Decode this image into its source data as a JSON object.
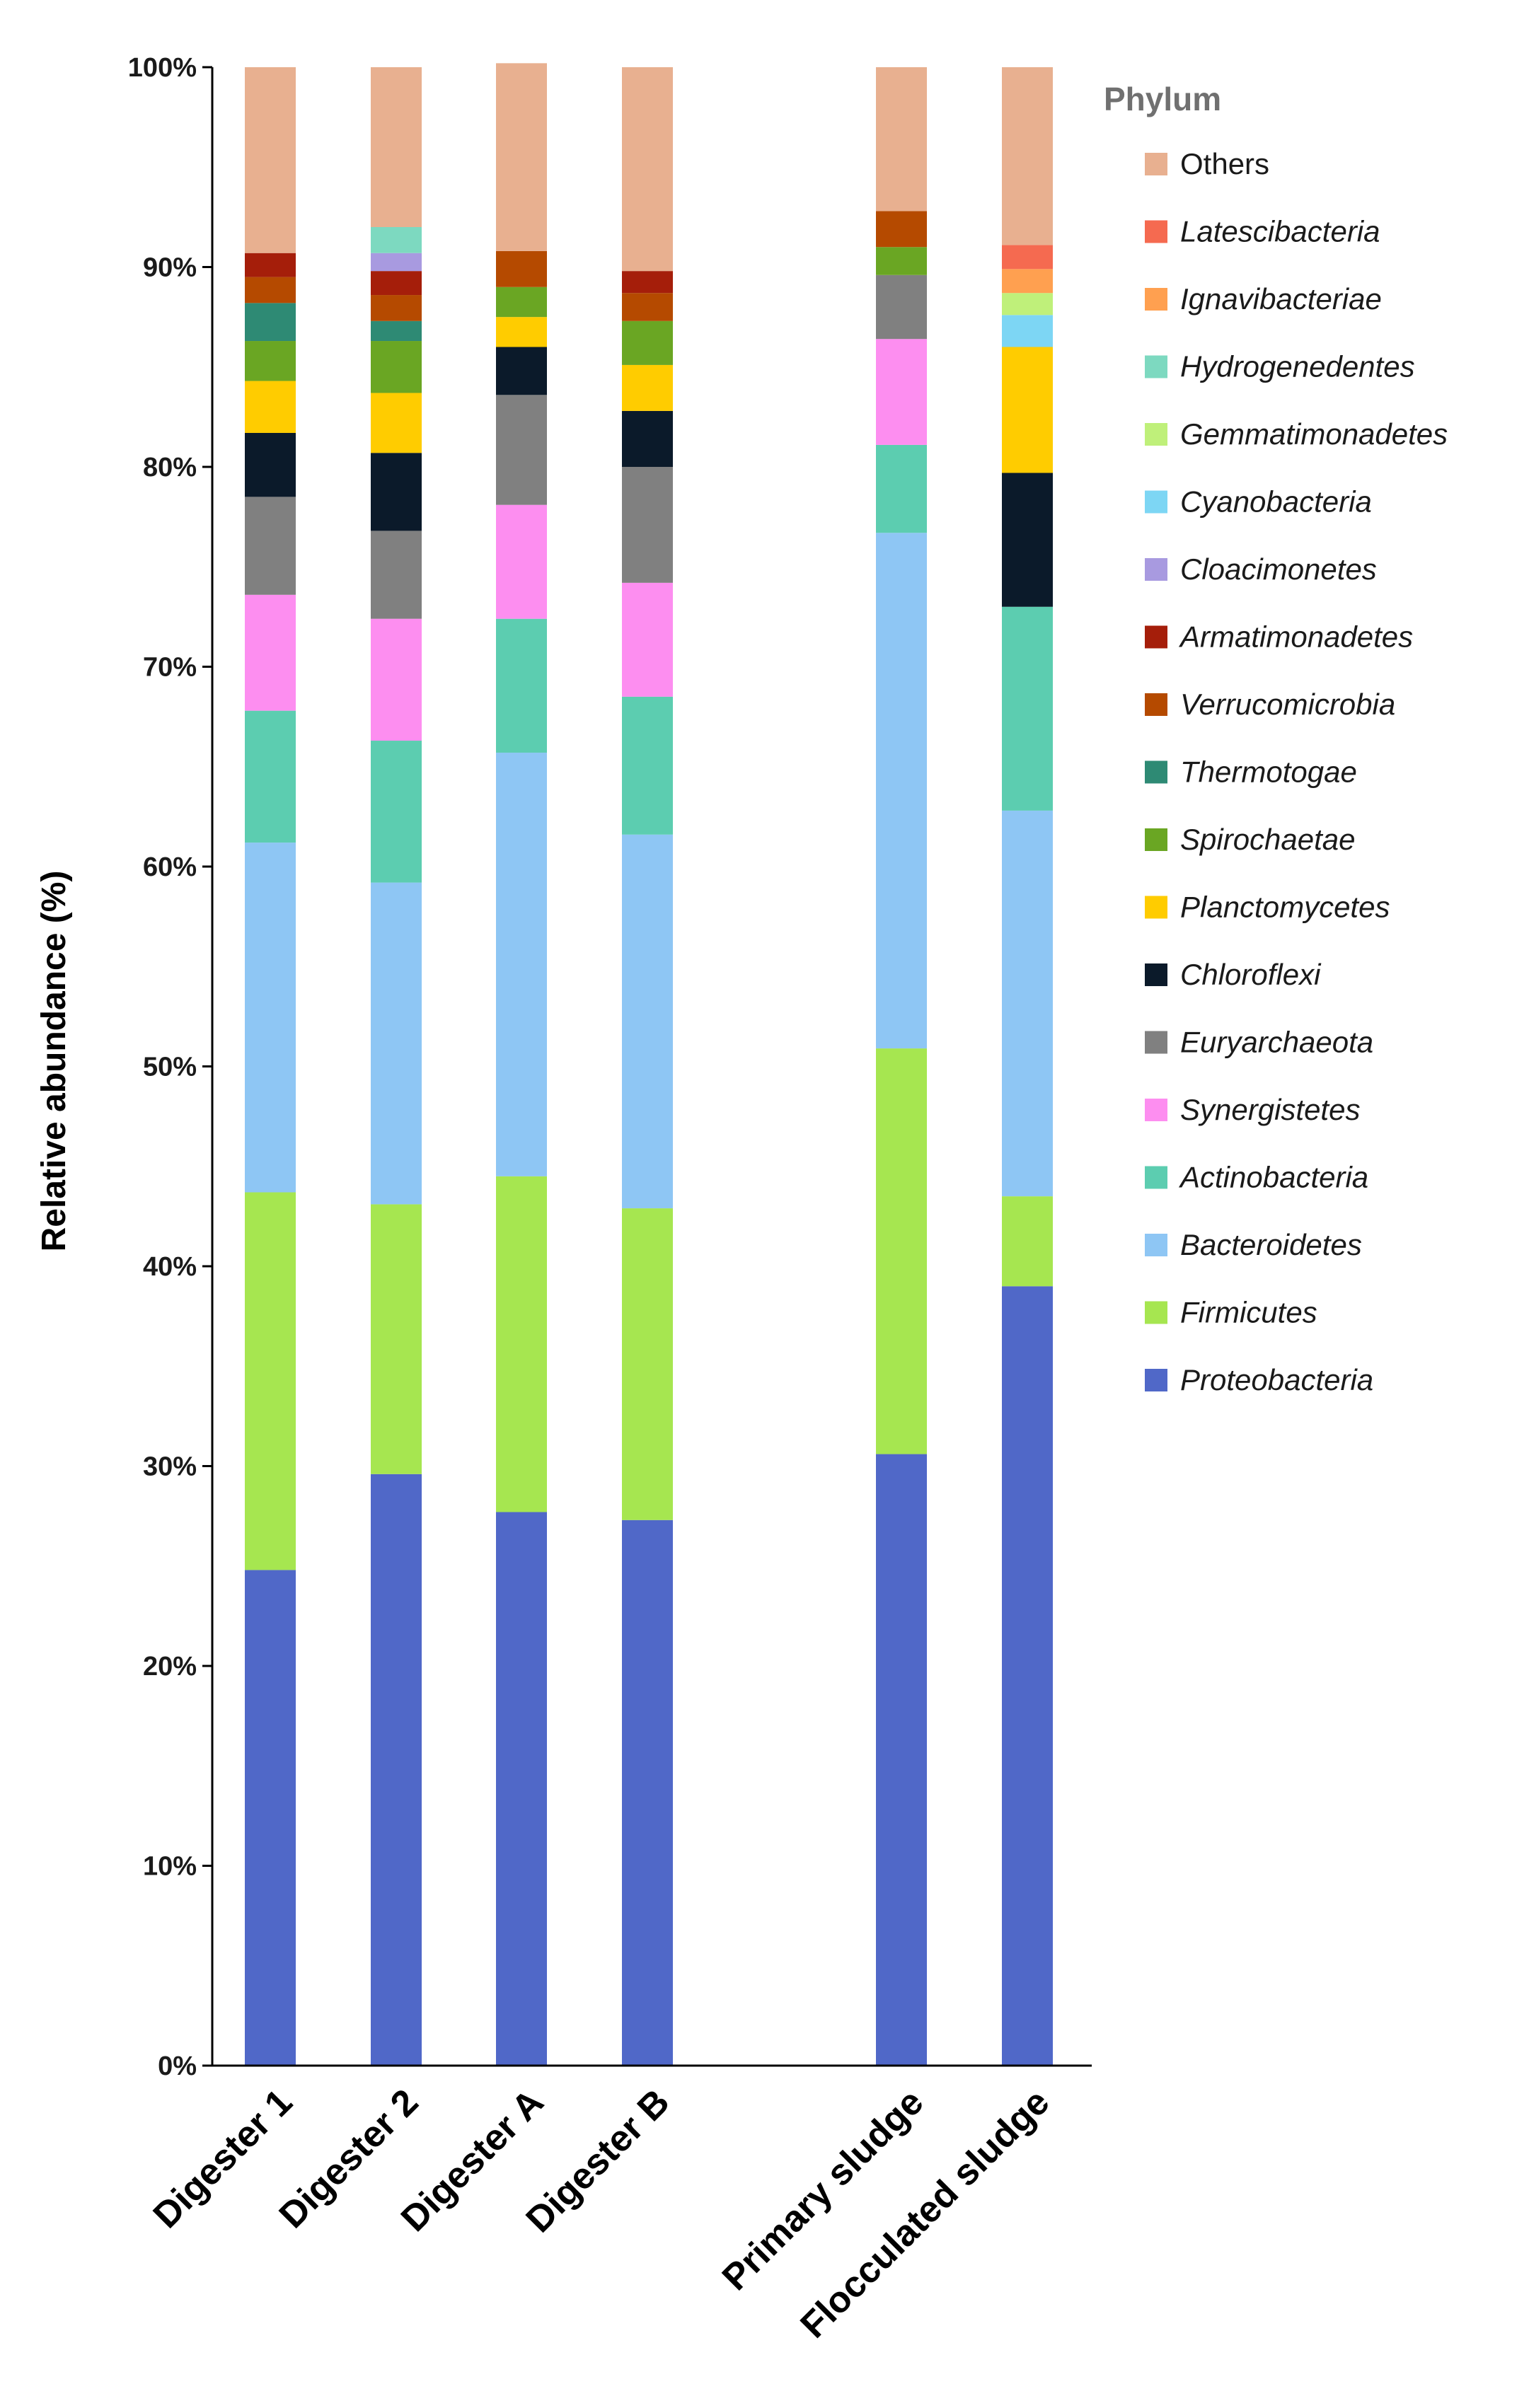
{
  "chart_data": {
    "type": "bar",
    "stacked": true,
    "title": "",
    "xlabel": "",
    "ylabel": "Relative abundance (%)",
    "ylim": [
      0,
      100
    ],
    "yticks": [
      "0%",
      "10%",
      "20%",
      "30%",
      "40%",
      "50%",
      "60%",
      "70%",
      "80%",
      "90%",
      "100%"
    ],
    "categories": [
      "Digester 1",
      "Digester 2",
      "Digester A",
      "Digester B",
      "Primary sludge",
      "Flocculated sludge"
    ],
    "legend_title": "Phylum",
    "legend_position": "right",
    "series": [
      {
        "name": "Proteobacteria",
        "color": "#5068c8",
        "italic": true,
        "values": [
          24.8,
          29.6,
          27.7,
          27.3,
          30.6,
          39.0
        ]
      },
      {
        "name": "Firmicutes",
        "color": "#a6e650",
        "italic": true,
        "values": [
          18.9,
          13.5,
          16.8,
          15.6,
          20.3,
          4.5
        ]
      },
      {
        "name": "Bacteroidetes",
        "color": "#8ec6f4",
        "italic": true,
        "values": [
          17.5,
          16.1,
          21.2,
          18.7,
          25.8,
          19.3
        ]
      },
      {
        "name": "Actinobacteria",
        "color": "#5ccdb0",
        "italic": true,
        "values": [
          6.6,
          7.1,
          6.7,
          6.9,
          4.4,
          10.2
        ]
      },
      {
        "name": "Synergistetes",
        "color": "#fd8ef0",
        "italic": true,
        "values": [
          5.8,
          6.1,
          5.7,
          5.7,
          5.3,
          0
        ]
      },
      {
        "name": "Euryarchaeota",
        "color": "#808080",
        "italic": true,
        "values": [
          4.9,
          4.4,
          5.5,
          5.8,
          3.2,
          0
        ]
      },
      {
        "name": "Chloroflexi",
        "color": "#0b1a2a",
        "italic": true,
        "values": [
          3.2,
          3.9,
          2.4,
          2.8,
          0,
          6.7
        ]
      },
      {
        "name": "Planctomycetes",
        "color": "#ffcc00",
        "italic": true,
        "values": [
          2.6,
          3.0,
          1.5,
          2.3,
          0,
          6.3
        ]
      },
      {
        "name": "Spirochaetae",
        "color": "#6aa623",
        "italic": true,
        "values": [
          2.0,
          2.6,
          1.5,
          2.2,
          1.4,
          0
        ]
      },
      {
        "name": "Thermotogae",
        "color": "#2e8a74",
        "italic": true,
        "values": [
          1.9,
          1.0,
          0,
          0,
          0,
          0
        ]
      },
      {
        "name": "Verrucomicrobia",
        "color": "#b54a00",
        "italic": true,
        "values": [
          1.3,
          1.3,
          1.8,
          1.4,
          1.8,
          0
        ]
      },
      {
        "name": "Armatimonadetes",
        "color": "#a51e0a",
        "italic": true,
        "values": [
          1.2,
          1.2,
          0,
          1.1,
          0,
          0
        ]
      },
      {
        "name": "Cloacimonetes",
        "color": "#a89ae0",
        "italic": true,
        "values": [
          0,
          0.9,
          0,
          0,
          0,
          0
        ]
      },
      {
        "name": "Cyanobacteria",
        "color": "#7dd6f4",
        "italic": true,
        "values": [
          0,
          0,
          0,
          0,
          0,
          1.6
        ]
      },
      {
        "name": "Gemmatimonadetes",
        "color": "#bff07a",
        "italic": true,
        "values": [
          0,
          0,
          0,
          0,
          0,
          1.1
        ]
      },
      {
        "name": "Hydrogenedentes",
        "color": "#7dd9c0",
        "italic": true,
        "values": [
          0,
          1.3,
          0,
          0,
          0,
          0
        ]
      },
      {
        "name": "Ignavibacteriae",
        "color": "#ffa050",
        "italic": true,
        "values": [
          0,
          0,
          0,
          0,
          0,
          1.2
        ]
      },
      {
        "name": "Latescibacteria",
        "color": "#f56a50",
        "italic": true,
        "values": [
          0,
          0,
          0,
          0,
          0,
          1.2
        ]
      },
      {
        "name": "Others",
        "color": "#e8b090",
        "italic": false,
        "values": [
          9.3,
          8.0,
          9.4,
          10.2,
          7.2,
          8.9
        ]
      }
    ]
  }
}
